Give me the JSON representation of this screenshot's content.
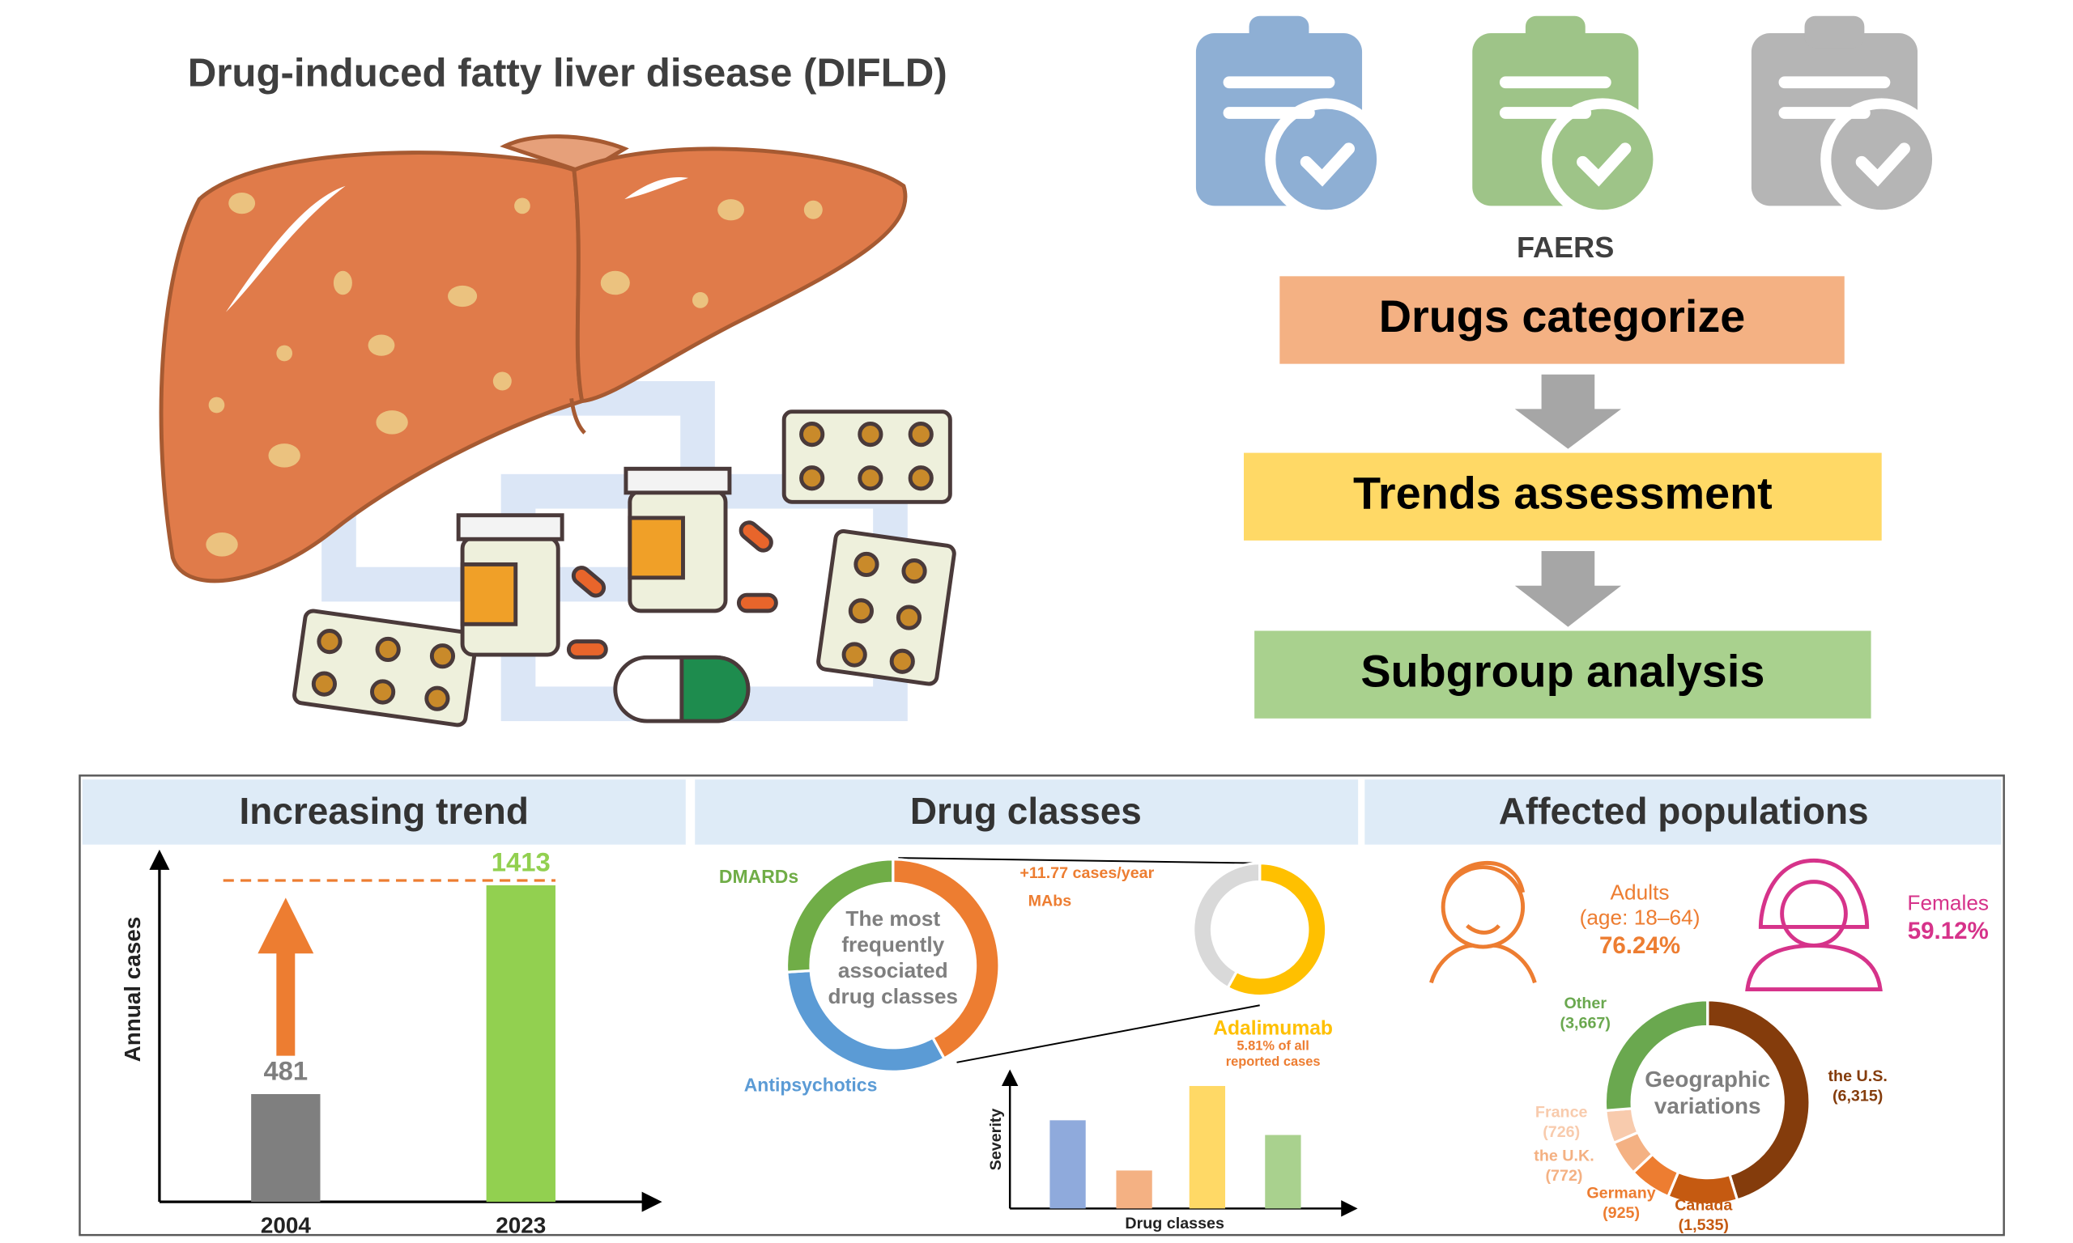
{
  "title": "Drug-induced fatty liver disease (DIFLD)",
  "faers": {
    "label": "FAERS",
    "steps": [
      "Drugs categorize",
      "Trends assessment",
      "Subgroup analysis"
    ],
    "colors": [
      "#f4b183",
      "#ffd966",
      "#a9d18e"
    ]
  },
  "trend": {
    "title": "Increasing trend",
    "type": "bar",
    "y_label": "Annual cases",
    "categories": [
      "2004",
      "2023"
    ],
    "values": [
      481,
      1413
    ],
    "colors": [
      "#7f7f7f",
      "#92d050"
    ],
    "ylim": [
      0,
      1500
    ]
  },
  "drug_classes": {
    "title": "Drug classes",
    "center_label": [
      "The most",
      "frequently",
      "associated",
      "drug classes"
    ],
    "rate": "+11.77 cases/year",
    "classes": {
      "type": "pie",
      "categories": [
        "MAbs",
        "Antipsychotics",
        "DMARDs"
      ],
      "values": [
        42,
        32,
        26
      ],
      "colors": [
        "#ed7d31",
        "#5b9bd5",
        "#70ad47"
      ]
    },
    "highlight": {
      "type": "pie",
      "name": "Adalimumab",
      "note": [
        "5.81% of all",
        "reported cases"
      ],
      "values": [
        58,
        42
      ],
      "colors": [
        "#ffc000",
        "#d9d9d9"
      ]
    },
    "severity": {
      "type": "bar",
      "y_label": "Severity",
      "x_label": "Drug classes",
      "values": [
        0.72,
        0.31,
        1,
        0.6
      ],
      "colors": [
        "#8faadc",
        "#f4b183",
        "#ffd966",
        "#a9d18e"
      ],
      "ylim": [
        0,
        1.03
      ]
    }
  },
  "populations": {
    "title": "Affected populations",
    "adults": {
      "label": "Adults",
      "age": "(age: 18–64)",
      "share": "76.24%"
    },
    "females": {
      "label": "Females",
      "share": "59.12%"
    },
    "geo": {
      "type": "pie",
      "center_label": [
        "Geographic",
        "variations"
      ],
      "categories": [
        "the U.S.",
        "Canada",
        "Germany",
        "the U.K.",
        "France",
        "Other"
      ],
      "values": [
        6315,
        1535,
        925,
        772,
        726,
        3667
      ],
      "value_labels": [
        "(6,315)",
        "(1,535)",
        "(925)",
        "(772)",
        "(726)",
        "(3,667)"
      ],
      "colors": [
        "#843c0c",
        "#c55a11",
        "#ed7d31",
        "#f4b183",
        "#f8cbad",
        "#6aa84f"
      ]
    }
  }
}
